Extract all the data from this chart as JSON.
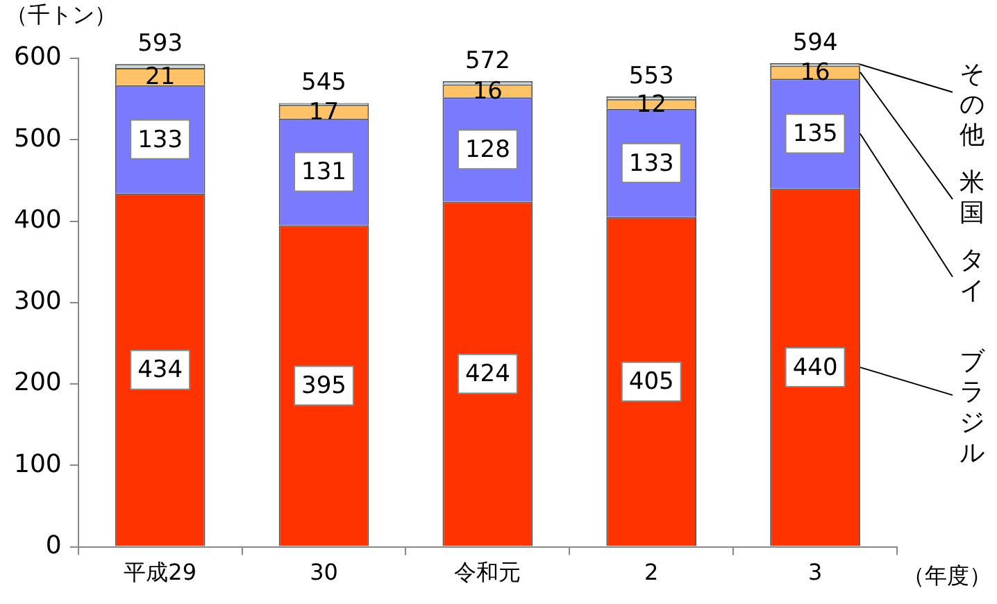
{
  "chart_data": {
    "type": "bar",
    "stacked": true,
    "ylabel": "（千トン）",
    "xlabel": "（年度）",
    "categories": [
      "平成29",
      "30",
      "令和元",
      "2",
      "3"
    ],
    "series": [
      {
        "name": "ブラジル",
        "color": "#ff3300",
        "values": [
          434,
          395,
          424,
          405,
          440
        ],
        "value_labels": [
          "434",
          "395",
          "424",
          "405",
          "440"
        ]
      },
      {
        "name": "タイ",
        "color": "#7a7aff",
        "values": [
          133,
          131,
          128,
          133,
          135
        ],
        "value_labels": [
          "133",
          "131",
          "128",
          "133",
          "135"
        ]
      },
      {
        "name": "米国",
        "color": "#ffc266",
        "values": [
          21,
          17,
          16,
          12,
          16
        ],
        "value_labels": [
          "21",
          "17",
          "16",
          "12",
          "16"
        ]
      },
      {
        "name": "その他",
        "color": "#c8d8d8",
        "values": [
          5,
          2,
          4,
          3,
          3
        ]
      }
    ],
    "totals": [
      "593",
      "545",
      "572",
      "553",
      "594"
    ],
    "ylim": [
      0,
      600
    ],
    "yticks": [
      0,
      100,
      200,
      300,
      400,
      500,
      600
    ],
    "legend": false
  }
}
